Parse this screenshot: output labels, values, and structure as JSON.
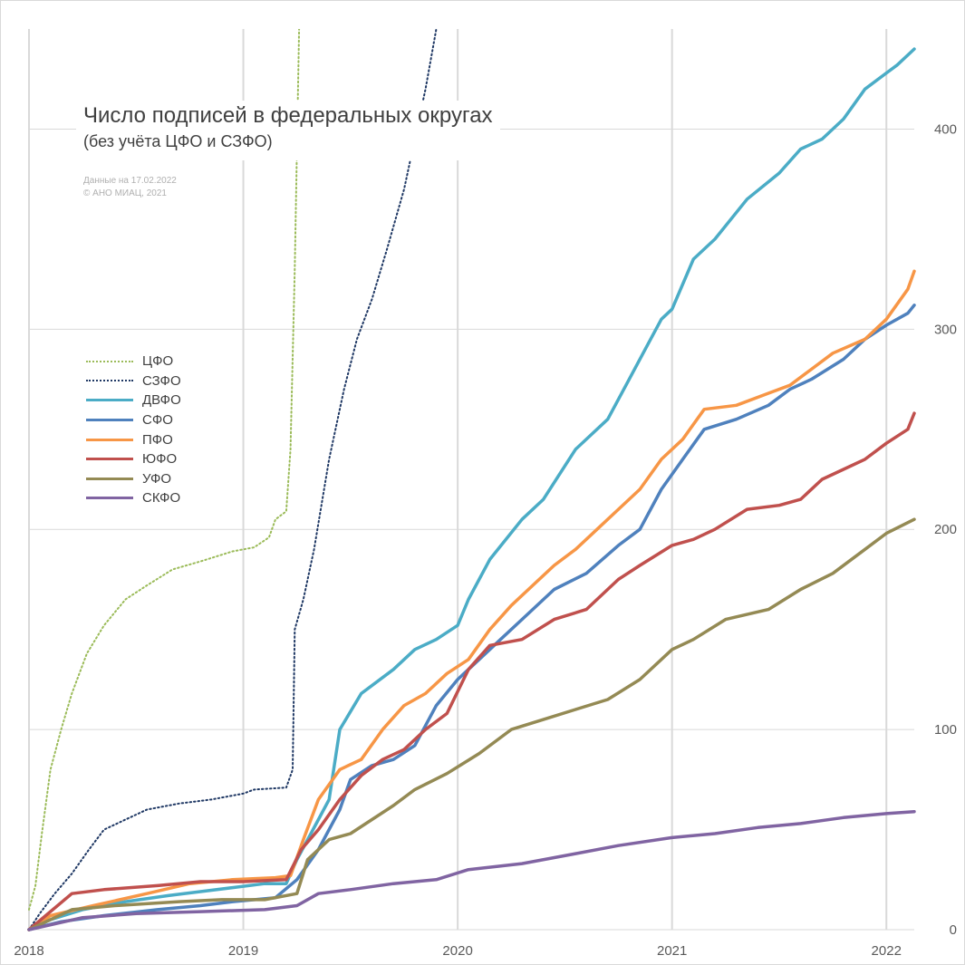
{
  "chart_data": {
    "type": "line",
    "title": "Число подписей в федеральных округах",
    "subtitle": "(без учёта ЦФО и СЗФО)",
    "notes": [
      "Данные на 17.02.2022",
      "© АНО МИАЦ, 2021"
    ],
    "x_axis": {
      "ticks": [
        "2018",
        "2019",
        "2020",
        "2021",
        "2022"
      ],
      "range": [
        2018.0,
        2022.13
      ]
    },
    "y_axis": {
      "ticks": [
        0,
        100,
        200,
        300,
        400
      ],
      "range": [
        0,
        450
      ],
      "position": "right"
    },
    "grid": true,
    "legend": {
      "placement": "left",
      "entries": [
        "ЦФО",
        "СЗФО",
        "ДВФО",
        "СФО",
        "ПФО",
        "ЮФО",
        "УФО",
        "СКФО"
      ]
    },
    "series": [
      {
        "name": "ЦФО",
        "color": "#9bbb59",
        "style": "dotted",
        "points": [
          [
            2018.0,
            10
          ],
          [
            2018.03,
            22
          ],
          [
            2018.06,
            48
          ],
          [
            2018.1,
            80
          ],
          [
            2018.15,
            100
          ],
          [
            2018.2,
            118
          ],
          [
            2018.27,
            138
          ],
          [
            2018.35,
            152
          ],
          [
            2018.45,
            165
          ],
          [
            2018.55,
            172
          ],
          [
            2018.67,
            180
          ],
          [
            2018.8,
            184
          ],
          [
            2018.95,
            189
          ],
          [
            2019.05,
            191
          ],
          [
            2019.12,
            196
          ],
          [
            2019.15,
            205
          ],
          [
            2019.2,
            209
          ],
          [
            2019.22,
            240
          ],
          [
            2019.24,
            330
          ],
          [
            2019.26,
            450
          ]
        ]
      },
      {
        "name": "СЗФО",
        "color": "#1f3864",
        "style": "dotted",
        "points": [
          [
            2018.0,
            0
          ],
          [
            2018.05,
            8
          ],
          [
            2018.12,
            18
          ],
          [
            2018.2,
            28
          ],
          [
            2018.28,
            40
          ],
          [
            2018.35,
            50
          ],
          [
            2018.45,
            55
          ],
          [
            2018.55,
            60
          ],
          [
            2018.7,
            63
          ],
          [
            2018.85,
            65
          ],
          [
            2019.0,
            68
          ],
          [
            2019.05,
            70
          ],
          [
            2019.2,
            71
          ],
          [
            2019.23,
            80
          ],
          [
            2019.24,
            150
          ],
          [
            2019.28,
            165
          ],
          [
            2019.33,
            190
          ],
          [
            2019.4,
            235
          ],
          [
            2019.47,
            270
          ],
          [
            2019.53,
            295
          ],
          [
            2019.6,
            315
          ],
          [
            2019.67,
            340
          ],
          [
            2019.75,
            370
          ],
          [
            2019.8,
            395
          ],
          [
            2019.85,
            420
          ],
          [
            2019.9,
            450
          ]
        ]
      },
      {
        "name": "ДВФО",
        "color": "#4bacc6",
        "style": "solid",
        "points": [
          [
            2018.0,
            0
          ],
          [
            2018.1,
            5
          ],
          [
            2018.25,
            10
          ],
          [
            2018.45,
            14
          ],
          [
            2018.65,
            17
          ],
          [
            2018.8,
            19
          ],
          [
            2018.95,
            21
          ],
          [
            2019.1,
            23
          ],
          [
            2019.2,
            23
          ],
          [
            2019.25,
            35
          ],
          [
            2019.35,
            55
          ],
          [
            2019.4,
            65
          ],
          [
            2019.45,
            100
          ],
          [
            2019.55,
            118
          ],
          [
            2019.7,
            130
          ],
          [
            2019.8,
            140
          ],
          [
            2019.9,
            145
          ],
          [
            2020.0,
            152
          ],
          [
            2020.05,
            165
          ],
          [
            2020.15,
            185
          ],
          [
            2020.3,
            205
          ],
          [
            2020.4,
            215
          ],
          [
            2020.55,
            240
          ],
          [
            2020.7,
            255
          ],
          [
            2020.8,
            275
          ],
          [
            2020.9,
            295
          ],
          [
            2020.95,
            305
          ],
          [
            2021.0,
            310
          ],
          [
            2021.1,
            335
          ],
          [
            2021.2,
            345
          ],
          [
            2021.35,
            365
          ],
          [
            2021.5,
            378
          ],
          [
            2021.6,
            390
          ],
          [
            2021.7,
            395
          ],
          [
            2021.8,
            405
          ],
          [
            2021.9,
            420
          ],
          [
            2022.0,
            428
          ],
          [
            2022.05,
            432
          ],
          [
            2022.13,
            440
          ]
        ]
      },
      {
        "name": "СФО",
        "color": "#4f81bd",
        "style": "solid",
        "points": [
          [
            2018.0,
            0
          ],
          [
            2018.15,
            4
          ],
          [
            2018.35,
            7
          ],
          [
            2018.6,
            10
          ],
          [
            2018.8,
            12
          ],
          [
            2018.95,
            14
          ],
          [
            2019.15,
            16
          ],
          [
            2019.25,
            25
          ],
          [
            2019.35,
            40
          ],
          [
            2019.45,
            60
          ],
          [
            2019.5,
            75
          ],
          [
            2019.6,
            82
          ],
          [
            2019.7,
            85
          ],
          [
            2019.8,
            92
          ],
          [
            2019.9,
            112
          ],
          [
            2020.0,
            125
          ],
          [
            2020.1,
            135
          ],
          [
            2020.2,
            145
          ],
          [
            2020.3,
            155
          ],
          [
            2020.45,
            170
          ],
          [
            2020.6,
            178
          ],
          [
            2020.75,
            192
          ],
          [
            2020.85,
            200
          ],
          [
            2020.95,
            220
          ],
          [
            2021.05,
            235
          ],
          [
            2021.15,
            250
          ],
          [
            2021.3,
            255
          ],
          [
            2021.45,
            262
          ],
          [
            2021.55,
            270
          ],
          [
            2021.65,
            275
          ],
          [
            2021.8,
            285
          ],
          [
            2021.9,
            295
          ],
          [
            2022.0,
            302
          ],
          [
            2022.1,
            308
          ],
          [
            2022.13,
            312
          ]
        ]
      },
      {
        "name": "ПФО",
        "color": "#f79646",
        "style": "solid",
        "points": [
          [
            2018.0,
            0
          ],
          [
            2018.1,
            7
          ],
          [
            2018.3,
            12
          ],
          [
            2018.55,
            18
          ],
          [
            2018.75,
            23
          ],
          [
            2018.95,
            25
          ],
          [
            2019.15,
            26
          ],
          [
            2019.22,
            27
          ],
          [
            2019.28,
            45
          ],
          [
            2019.35,
            65
          ],
          [
            2019.45,
            80
          ],
          [
            2019.55,
            85
          ],
          [
            2019.65,
            100
          ],
          [
            2019.75,
            112
          ],
          [
            2019.85,
            118
          ],
          [
            2019.95,
            128
          ],
          [
            2020.05,
            135
          ],
          [
            2020.15,
            150
          ],
          [
            2020.25,
            162
          ],
          [
            2020.35,
            172
          ],
          [
            2020.45,
            182
          ],
          [
            2020.55,
            190
          ],
          [
            2020.65,
            200
          ],
          [
            2020.75,
            210
          ],
          [
            2020.85,
            220
          ],
          [
            2020.95,
            235
          ],
          [
            2021.05,
            245
          ],
          [
            2021.15,
            260
          ],
          [
            2021.3,
            262
          ],
          [
            2021.45,
            268
          ],
          [
            2021.55,
            272
          ],
          [
            2021.65,
            280
          ],
          [
            2021.75,
            288
          ],
          [
            2021.9,
            295
          ],
          [
            2022.0,
            305
          ],
          [
            2022.1,
            320
          ],
          [
            2022.13,
            329
          ]
        ]
      },
      {
        "name": "ЮФО",
        "color": "#c0504d",
        "style": "solid",
        "points": [
          [
            2018.0,
            0
          ],
          [
            2018.2,
            18
          ],
          [
            2018.35,
            20
          ],
          [
            2018.6,
            22
          ],
          [
            2018.8,
            24
          ],
          [
            2019.0,
            24
          ],
          [
            2019.2,
            25
          ],
          [
            2019.27,
            40
          ],
          [
            2019.35,
            50
          ],
          [
            2019.45,
            65
          ],
          [
            2019.55,
            77
          ],
          [
            2019.65,
            85
          ],
          [
            2019.75,
            90
          ],
          [
            2019.85,
            100
          ],
          [
            2019.95,
            108
          ],
          [
            2020.05,
            130
          ],
          [
            2020.15,
            142
          ],
          [
            2020.3,
            145
          ],
          [
            2020.45,
            155
          ],
          [
            2020.6,
            160
          ],
          [
            2020.75,
            175
          ],
          [
            2020.85,
            182
          ],
          [
            2021.0,
            192
          ],
          [
            2021.1,
            195
          ],
          [
            2021.2,
            200
          ],
          [
            2021.35,
            210
          ],
          [
            2021.5,
            212
          ],
          [
            2021.6,
            215
          ],
          [
            2021.7,
            225
          ],
          [
            2021.8,
            230
          ],
          [
            2021.9,
            235
          ],
          [
            2022.0,
            243
          ],
          [
            2022.1,
            250
          ],
          [
            2022.13,
            258
          ]
        ]
      },
      {
        "name": "УФО",
        "color": "#948a54",
        "style": "solid",
        "points": [
          [
            2018.0,
            0
          ],
          [
            2018.2,
            10
          ],
          [
            2018.4,
            12
          ],
          [
            2018.7,
            14
          ],
          [
            2018.9,
            15
          ],
          [
            2019.1,
            15
          ],
          [
            2019.25,
            18
          ],
          [
            2019.3,
            35
          ],
          [
            2019.4,
            45
          ],
          [
            2019.5,
            48
          ],
          [
            2019.6,
            55
          ],
          [
            2019.7,
            62
          ],
          [
            2019.8,
            70
          ],
          [
            2019.95,
            78
          ],
          [
            2020.1,
            88
          ],
          [
            2020.25,
            100
          ],
          [
            2020.4,
            105
          ],
          [
            2020.55,
            110
          ],
          [
            2020.7,
            115
          ],
          [
            2020.85,
            125
          ],
          [
            2021.0,
            140
          ],
          [
            2021.1,
            145
          ],
          [
            2021.25,
            155
          ],
          [
            2021.45,
            160
          ],
          [
            2021.6,
            170
          ],
          [
            2021.75,
            178
          ],
          [
            2021.9,
            190
          ],
          [
            2022.0,
            198
          ],
          [
            2022.13,
            205
          ]
        ]
      },
      {
        "name": "СКФО",
        "color": "#8064a2",
        "style": "solid",
        "points": [
          [
            2018.0,
            0
          ],
          [
            2018.25,
            6
          ],
          [
            2018.5,
            8
          ],
          [
            2018.8,
            9
          ],
          [
            2019.1,
            10
          ],
          [
            2019.25,
            12
          ],
          [
            2019.35,
            18
          ],
          [
            2019.5,
            20
          ],
          [
            2019.7,
            23
          ],
          [
            2019.9,
            25
          ],
          [
            2020.05,
            30
          ],
          [
            2020.3,
            33
          ],
          [
            2020.55,
            38
          ],
          [
            2020.75,
            42
          ],
          [
            2021.0,
            46
          ],
          [
            2021.2,
            48
          ],
          [
            2021.4,
            51
          ],
          [
            2021.6,
            53
          ],
          [
            2021.8,
            56
          ],
          [
            2022.0,
            58
          ],
          [
            2022.13,
            59
          ]
        ]
      }
    ]
  }
}
